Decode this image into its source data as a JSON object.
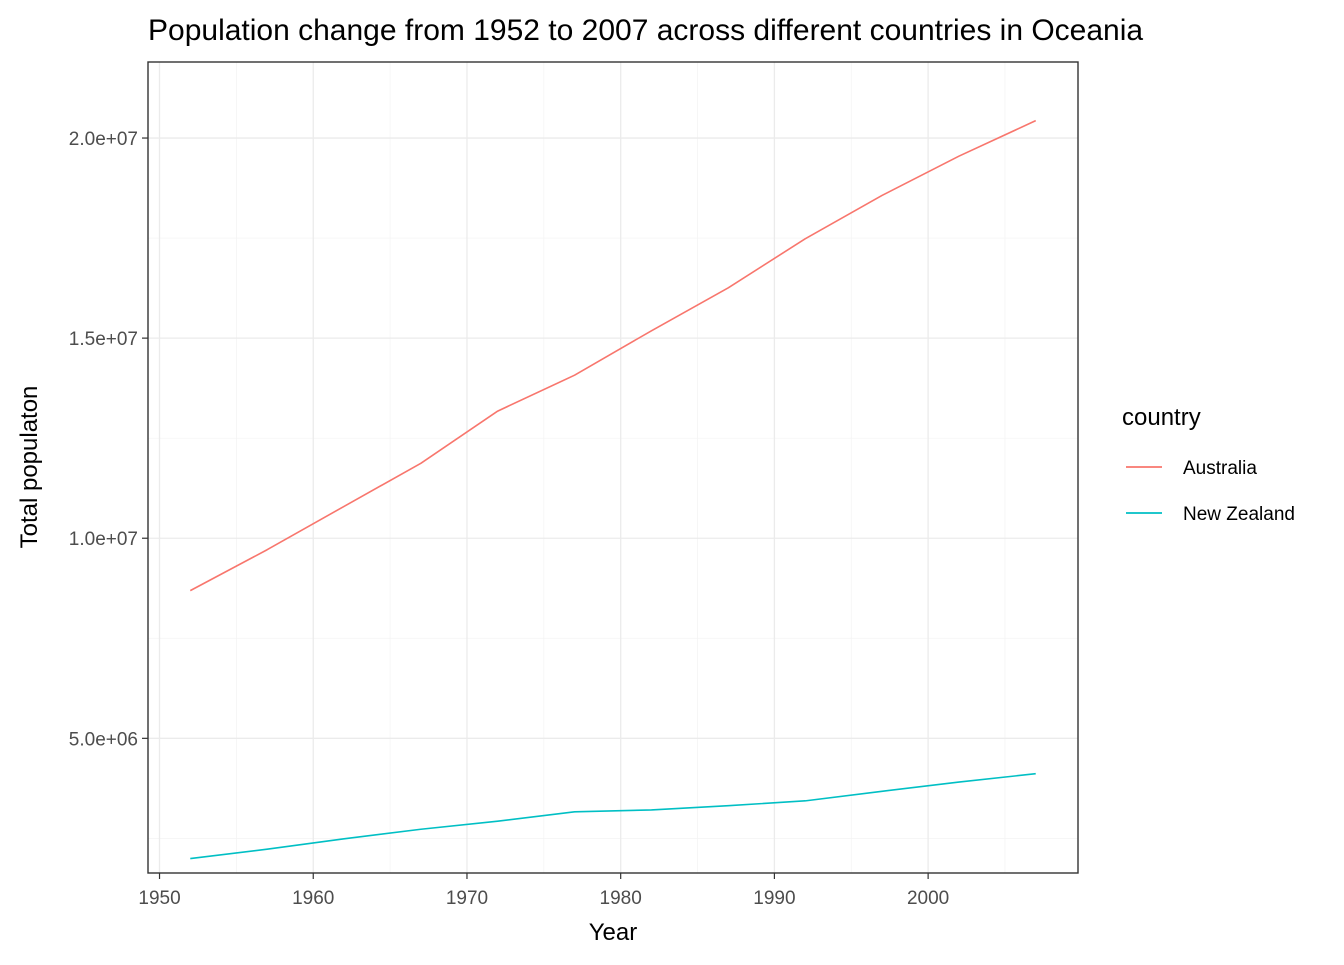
{
  "chart_data": {
    "type": "line",
    "title": "Population change from 1952 to 2007 across different countries in Oceania",
    "xlabel": "Year",
    "ylabel": "Total populaton",
    "x": [
      1952,
      1957,
      1962,
      1967,
      1972,
      1977,
      1982,
      1987,
      1992,
      1997,
      2002,
      2007
    ],
    "xlim": [
      1949.25,
      2009.75
    ],
    "ylim": [
      1635000,
      21900000
    ],
    "x_ticks": [
      1950,
      1960,
      1970,
      1980,
      1990,
      2000
    ],
    "x_tick_labels": [
      "1950",
      "1960",
      "1970",
      "1980",
      "1990",
      "2000"
    ],
    "y_ticks": [
      5000000,
      10000000,
      15000000,
      20000000
    ],
    "y_tick_labels": [
      "5.0e+06",
      "1.0e+07",
      "1.5e+07",
      "2.0e+07"
    ],
    "grid": true,
    "legend": {
      "title": "country",
      "position": "right"
    },
    "series": [
      {
        "name": "Australia",
        "color": "#F8766D",
        "values": [
          8691212,
          9712569,
          10794968,
          11872264,
          13177000,
          14074100,
          15184200,
          16257249,
          17481977,
          18565243,
          19546792,
          20434176
        ]
      },
      {
        "name": "New Zealand",
        "color": "#00BFC4",
        "values": [
          1994794,
          2229407,
          2488550,
          2728150,
          2929100,
          3164900,
          3210650,
          3317166,
          3437674,
          3676187,
          3908037,
          4115771
        ]
      }
    ]
  }
}
